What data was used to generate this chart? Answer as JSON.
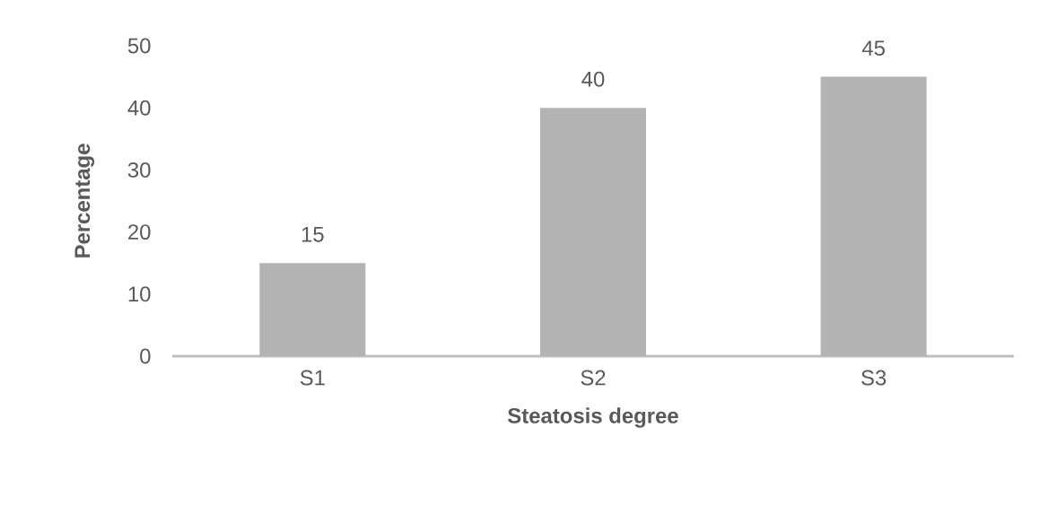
{
  "chart_data": {
    "type": "bar",
    "xlabel": "Steatosis degree",
    "ylabel": "Percentage",
    "categories": [
      "S1",
      "S2",
      "S3"
    ],
    "values": [
      15,
      40,
      45
    ],
    "color": "#b3b3b3",
    "ylim": [
      0,
      50
    ],
    "yticks": [
      0,
      10,
      20,
      30,
      40,
      50
    ],
    "data_labels": true
  }
}
